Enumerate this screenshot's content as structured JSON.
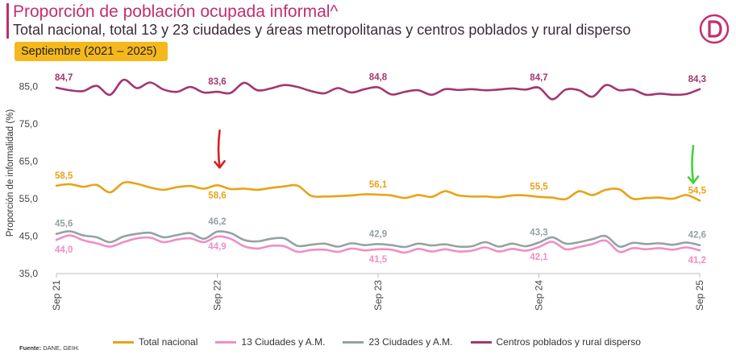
{
  "header": {
    "title": "Proporción de población ocupada informal^",
    "subtitle": "Total nacional, total 13 y 23 ciudades y áreas metropolitanas y centros poblados y rural disperso",
    "period": "Septiembre (2021 – 2025)",
    "logo_icon": "dane-logo-icon"
  },
  "footer": {
    "source_label": "Fuente:",
    "source_text": "DANE, GEIH."
  },
  "colors": {
    "brand": "#c0306f",
    "period_bg": "#f5b81c",
    "total": "#e8a317",
    "c13": "#f08dc6",
    "c23": "#94a2a3",
    "rural": "#a3366e",
    "arrow_red": "#d62020",
    "arrow_green": "#45d13a"
  },
  "chart_data": {
    "type": "line",
    "ylabel": "Proporción de informalidad (%)",
    "ylim": [
      35,
      89
    ],
    "yticks": [
      "35,0",
      "45,0",
      "55,0",
      "65,0",
      "75,0",
      "85,0"
    ],
    "ytick_values": [
      35,
      45,
      55,
      65,
      75,
      85
    ],
    "xtick_labels": [
      "Sep 21",
      "Sep 22",
      "Sep 23",
      "Sep 24",
      "Sep 25"
    ],
    "xtick_index": [
      0,
      12,
      24,
      36,
      48
    ],
    "series": [
      {
        "name": "Centros poblados y rural disperso",
        "key": "rural",
        "values": [
          84.7,
          84.0,
          83.8,
          85.2,
          82.8,
          86.8,
          84.6,
          86.1,
          84.2,
          83.6,
          84.9,
          83.4,
          83.6,
          83.3,
          86.0,
          84.0,
          84.5,
          85.4,
          84.9,
          83.8,
          83.2,
          84.6,
          83.4,
          84.3,
          84.8,
          82.9,
          83.6,
          84.0,
          82.8,
          84.3,
          84.1,
          84.3,
          84.0,
          84.2,
          84.5,
          84.2,
          84.7,
          81.6,
          84.2,
          84.0,
          82.3,
          85.4,
          84.0,
          84.2,
          82.8,
          83.1,
          82.8,
          83.0,
          84.3
        ],
        "labels": [
          {
            "index": 0,
            "text": "84,7",
            "pos": "above"
          },
          {
            "index": 12,
            "text": "83,6",
            "pos": "above"
          },
          {
            "index": 24,
            "text": "84,8",
            "pos": "above"
          },
          {
            "index": 36,
            "text": "84,7",
            "pos": "above"
          },
          {
            "index": 48,
            "text": "84,3",
            "pos": "above"
          }
        ]
      },
      {
        "name": "Total nacional",
        "key": "total",
        "values": [
          58.5,
          58.9,
          58.2,
          58.7,
          56.7,
          59.3,
          59.0,
          58.0,
          57.4,
          58.1,
          58.4,
          57.7,
          58.6,
          57.6,
          57.7,
          57.4,
          57.9,
          58.3,
          58.5,
          55.8,
          55.6,
          55.7,
          55.9,
          56.2,
          56.1,
          55.9,
          55.2,
          56.0,
          55.5,
          57.0,
          55.9,
          55.6,
          55.6,
          55.4,
          55.9,
          55.9,
          55.5,
          55.3,
          54.9,
          57.0,
          56.0,
          57.4,
          57.5,
          55.0,
          55.2,
          55.3,
          55.0,
          56.0,
          54.5
        ],
        "labels": [
          {
            "index": 0,
            "text": "58,5",
            "pos": "above"
          },
          {
            "index": 12,
            "text": "58,6",
            "pos": "below"
          },
          {
            "index": 24,
            "text": "56,1",
            "pos": "above"
          },
          {
            "index": 36,
            "text": "55,5",
            "pos": "above"
          },
          {
            "index": 48,
            "text": "54,5",
            "pos": "above"
          }
        ]
      },
      {
        "name": "23 Ciudades y A.M.",
        "key": "c23",
        "values": [
          45.6,
          46.3,
          45.2,
          44.7,
          43.4,
          44.9,
          45.6,
          45.9,
          44.7,
          45.3,
          45.8,
          44.3,
          46.2,
          45.8,
          44.0,
          43.6,
          44.3,
          44.4,
          42.4,
          42.7,
          43.0,
          42.2,
          43.1,
          42.6,
          42.9,
          42.6,
          42.1,
          43.0,
          42.5,
          42.8,
          42.2,
          42.3,
          43.4,
          42.2,
          43.0,
          42.3,
          43.3,
          44.7,
          43.0,
          43.4,
          44.2,
          45.0,
          42.2,
          43.2,
          42.9,
          43.1,
          42.7,
          43.3,
          42.6
        ],
        "labels": [
          {
            "index": 0,
            "text": "45,6",
            "pos": "above"
          },
          {
            "index": 12,
            "text": "46,2",
            "pos": "above"
          },
          {
            "index": 24,
            "text": "42,9",
            "pos": "above"
          },
          {
            "index": 36,
            "text": "43,3",
            "pos": "above"
          },
          {
            "index": 48,
            "text": "42,6",
            "pos": "above"
          }
        ]
      },
      {
        "name": "13 Ciudades y A.M.",
        "key": "c13",
        "values": [
          44.0,
          45.2,
          43.9,
          43.1,
          42.2,
          43.4,
          44.4,
          44.6,
          43.4,
          44.1,
          44.4,
          43.4,
          44.9,
          44.3,
          42.3,
          41.7,
          42.4,
          42.3,
          40.8,
          41.3,
          41.4,
          40.8,
          41.7,
          41.2,
          41.5,
          41.4,
          40.6,
          41.6,
          40.9,
          41.5,
          40.9,
          41.1,
          42.0,
          40.9,
          41.6,
          41.1,
          42.1,
          43.5,
          41.5,
          42.1,
          42.9,
          43.8,
          40.8,
          41.8,
          41.5,
          41.8,
          41.4,
          42.0,
          41.2
        ],
        "labels": [
          {
            "index": 0,
            "text": "44,0",
            "pos": "below"
          },
          {
            "index": 12,
            "text": "44,9",
            "pos": "below"
          },
          {
            "index": 24,
            "text": "41,5",
            "pos": "below"
          },
          {
            "index": 36,
            "text": "42,1",
            "pos": "below"
          },
          {
            "index": 48,
            "text": "41,2",
            "pos": "below"
          }
        ]
      }
    ],
    "legend": [
      "Total nacional",
      "13 Ciudades y A.M.",
      "23 Ciudades y A.M.",
      "Centros poblados y rural disperso"
    ],
    "legend_keys": [
      "total",
      "c13",
      "c23",
      "rural"
    ],
    "legend_position": "bottom",
    "annotations": [
      {
        "type": "arrow",
        "color": "arrow_red",
        "near_index": 12,
        "series": "total"
      },
      {
        "type": "arrow",
        "color": "arrow_green",
        "near_index": 48,
        "series": "total"
      }
    ]
  }
}
